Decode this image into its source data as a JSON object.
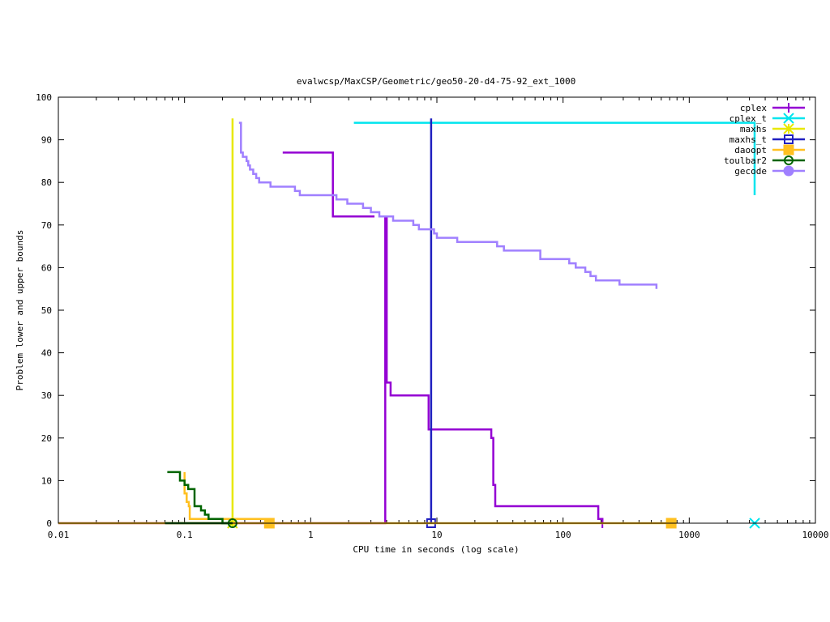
{
  "chart_data": {
    "type": "line",
    "title": "evalwcsp/MaxCSP/Geometric/geo50-20-d4-75-92_ext_1000",
    "xlabel": "CPU time in seconds (log scale)",
    "ylabel": "Problem lower and upper bounds",
    "xscale": "log",
    "xlim": [
      0.01,
      10000
    ],
    "ylim": [
      0,
      100
    ],
    "xticks": [
      0.01,
      0.1,
      1,
      10,
      100,
      1000,
      10000
    ],
    "xtick_labels": [
      "0.01",
      "0.1",
      "1",
      "10",
      "100",
      "1000",
      "10000"
    ],
    "yticks": [
      0,
      10,
      20,
      30,
      40,
      50,
      60,
      70,
      80,
      90,
      100
    ],
    "ytick_labels": [
      "0",
      "10",
      "20",
      "30",
      "40",
      "50",
      "60",
      "70",
      "80",
      "90",
      "100"
    ],
    "grid": false,
    "legend_position": "top-right",
    "series": [
      {
        "name": "cplex",
        "color": "#9400d3",
        "marker": "plus",
        "segments": [
          [
            [
              0.6,
              87
            ],
            [
              1.5,
              87
            ],
            [
              1.5,
              72
            ],
            [
              3.2,
              72
            ]
          ],
          [
            [
              0.01,
              0
            ],
            [
              3.9,
              0
            ],
            [
              3.9,
              72
            ],
            [
              4.0,
              72
            ],
            [
              4.0,
              33
            ],
            [
              4.3,
              33
            ],
            [
              4.3,
              30
            ],
            [
              8.6,
              30
            ],
            [
              8.6,
              22
            ],
            [
              27,
              22
            ],
            [
              27,
              20
            ],
            [
              28,
              20
            ],
            [
              28,
              9
            ],
            [
              29,
              9
            ],
            [
              29,
              4
            ],
            [
              190,
              4
            ],
            [
              190,
              1
            ],
            [
              205,
              1
            ],
            [
              205,
              0
            ]
          ]
        ],
        "markers": [
          [
            205,
            0
          ]
        ]
      },
      {
        "name": "cplex_t",
        "color": "#00e5ee",
        "marker": "x",
        "segments": [
          [
            [
              2.2,
              94
            ],
            [
              3300,
              94
            ],
            [
              3300,
              77
            ]
          ]
        ],
        "markers": [
          [
            3300,
            0
          ]
        ]
      },
      {
        "name": "maxhs",
        "color": "#e8e800",
        "marker": "star",
        "segments": [
          [
            [
              0.24,
              95
            ],
            [
              0.24,
              0
            ]
          ]
        ],
        "markers": [
          [
            0.24,
            0
          ]
        ]
      },
      {
        "name": "maxhs_t",
        "color": "#2020c0",
        "marker": "square",
        "segments": [
          [
            [
              9.0,
              95
            ],
            [
              9.0,
              0
            ]
          ]
        ],
        "markers": [
          [
            9.0,
            0
          ]
        ]
      },
      {
        "name": "daoopt",
        "color": "#ffc020",
        "marker": "filled-square",
        "segments": [
          [
            [
              0.1,
              12
            ],
            [
              0.1,
              7
            ],
            [
              0.104,
              7
            ],
            [
              0.104,
              5
            ],
            [
              0.108,
              5
            ],
            [
              0.108,
              4
            ],
            [
              0.11,
              4
            ],
            [
              0.11,
              1
            ],
            [
              0.47,
              1
            ],
            [
              0.47,
              0
            ]
          ],
          [
            [
              0.01,
              0
            ],
            [
              720,
              0
            ]
          ]
        ],
        "markers": [
          [
            0.47,
            0
          ],
          [
            720,
            0
          ]
        ]
      },
      {
        "name": "toulbar2",
        "color": "#006400",
        "marker": "circle",
        "segments": [
          [
            [
              0.073,
              12
            ],
            [
              0.092,
              12
            ],
            [
              0.092,
              10
            ],
            [
              0.1,
              10
            ],
            [
              0.1,
              9
            ],
            [
              0.107,
              9
            ],
            [
              0.107,
              8
            ],
            [
              0.12,
              8
            ],
            [
              0.12,
              4
            ],
            [
              0.135,
              4
            ],
            [
              0.135,
              3
            ],
            [
              0.145,
              3
            ],
            [
              0.145,
              2
            ],
            [
              0.155,
              2
            ],
            [
              0.155,
              1
            ],
            [
              0.2,
              1
            ],
            [
              0.2,
              0
            ],
            [
              0.24,
              0
            ]
          ],
          [
            [
              0.07,
              0
            ],
            [
              0.24,
              0
            ]
          ]
        ],
        "markers": [
          [
            0.24,
            0
          ]
        ]
      },
      {
        "name": "gecode",
        "color": "#a080ff",
        "marker": "filled-circle",
        "segments": [
          [
            [
              0.27,
              94
            ],
            [
              0.28,
              94
            ],
            [
              0.28,
              87
            ],
            [
              0.29,
              87
            ],
            [
              0.29,
              86
            ],
            [
              0.31,
              86
            ],
            [
              0.31,
              85
            ],
            [
              0.32,
              85
            ],
            [
              0.32,
              84
            ],
            [
              0.33,
              84
            ],
            [
              0.33,
              83
            ],
            [
              0.35,
              83
            ],
            [
              0.35,
              82
            ],
            [
              0.37,
              82
            ],
            [
              0.37,
              81
            ],
            [
              0.39,
              81
            ],
            [
              0.39,
              80
            ],
            [
              0.48,
              80
            ],
            [
              0.48,
              79
            ],
            [
              0.75,
              79
            ],
            [
              0.75,
              78
            ],
            [
              0.82,
              78
            ],
            [
              0.82,
              77
            ],
            [
              1.6,
              77
            ],
            [
              1.6,
              76
            ],
            [
              1.95,
              76
            ],
            [
              1.95,
              75
            ],
            [
              2.6,
              75
            ],
            [
              2.6,
              74
            ],
            [
              3.0,
              74
            ],
            [
              3.0,
              73
            ],
            [
              3.5,
              73
            ],
            [
              3.5,
              72
            ],
            [
              4.5,
              72
            ],
            [
              4.5,
              71
            ],
            [
              6.5,
              71
            ],
            [
              6.5,
              70
            ],
            [
              7.2,
              70
            ],
            [
              7.2,
              69
            ],
            [
              9.5,
              69
            ],
            [
              9.5,
              68
            ],
            [
              10,
              68
            ],
            [
              10,
              67
            ],
            [
              14.5,
              67
            ],
            [
              14.5,
              66
            ],
            [
              30,
              66
            ],
            [
              30,
              65
            ],
            [
              34,
              65
            ],
            [
              34,
              64
            ],
            [
              66,
              64
            ],
            [
              66,
              62
            ],
            [
              112,
              62
            ],
            [
              112,
              61
            ],
            [
              126,
              61
            ],
            [
              126,
              60
            ],
            [
              150,
              60
            ],
            [
              150,
              59
            ],
            [
              165,
              59
            ],
            [
              165,
              58
            ],
            [
              182,
              58
            ],
            [
              182,
              57
            ],
            [
              280,
              57
            ],
            [
              280,
              56
            ],
            [
              550,
              56
            ],
            [
              550,
              55
            ]
          ]
        ],
        "markers": []
      }
    ]
  }
}
